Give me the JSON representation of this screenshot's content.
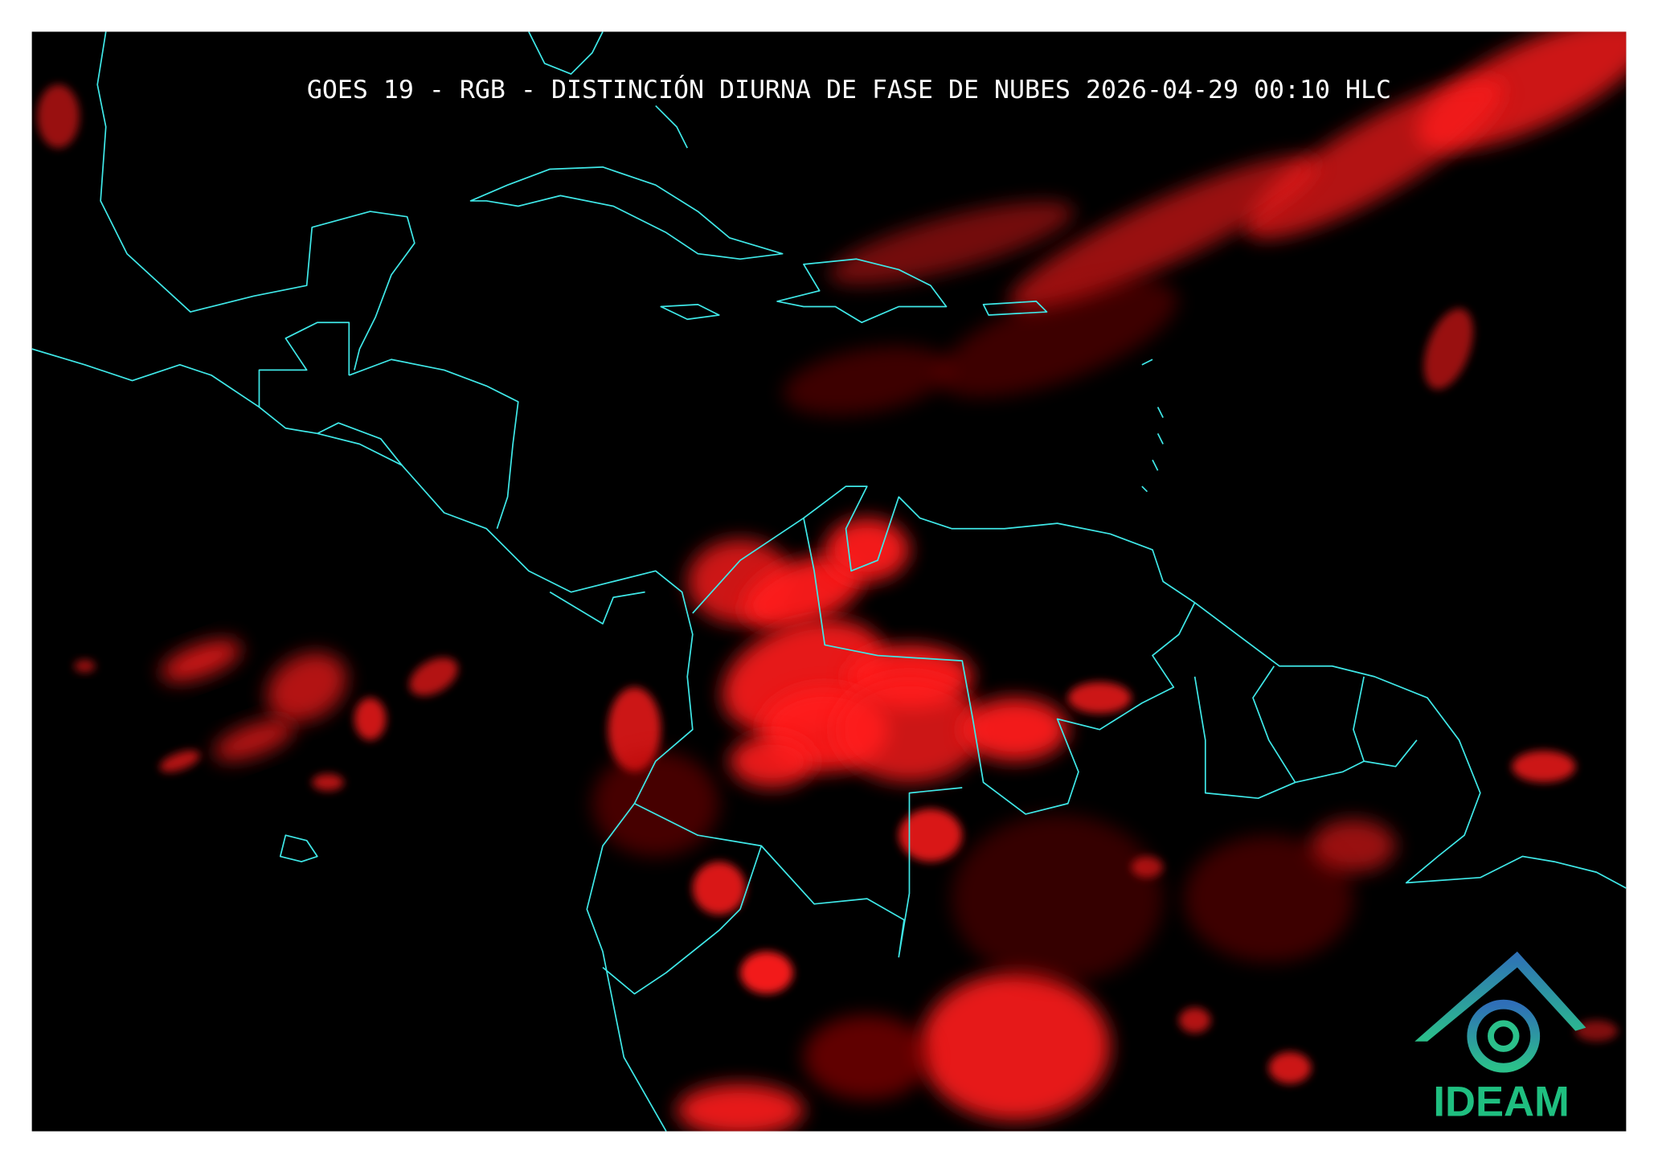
{
  "title": "GOES 19 - RGB - DISTINCIÓN DIURNA DE FASE DE NUBES 2026-04-29 00:10 HLC",
  "logo": {
    "text": "IDEAM"
  }
}
